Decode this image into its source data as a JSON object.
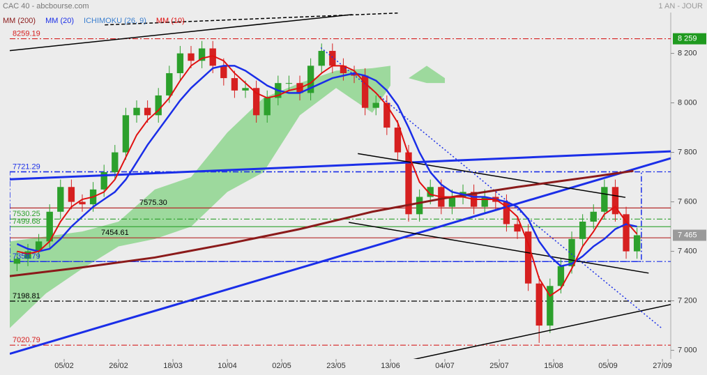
{
  "chart_data": {
    "type": "candlestick",
    "title": "CAC 40 - abcbourse.com",
    "period": "1 AN - JOUR",
    "xlim": [
      0,
      182.3
    ],
    "ylim": [
      6965,
      8365
    ],
    "xticks": [
      {
        "value": 15,
        "label": "05/02"
      },
      {
        "value": 30,
        "label": "26/02"
      },
      {
        "value": 45,
        "label": "18/03"
      },
      {
        "value": 60,
        "label": "10/04"
      },
      {
        "value": 75,
        "label": "02/05"
      },
      {
        "value": 90,
        "label": "23/05"
      },
      {
        "value": 105,
        "label": "13/06"
      },
      {
        "value": 120,
        "label": "04/07"
      },
      {
        "value": 135,
        "label": "25/07"
      },
      {
        "value": 150,
        "label": "15/08"
      },
      {
        "value": 165,
        "label": "05/09"
      },
      {
        "value": 180,
        "label": "27/09"
      }
    ],
    "yticks": [
      {
        "value": 7000,
        "label": "7 000"
      },
      {
        "value": 7200,
        "label": "7 200"
      },
      {
        "value": 7400,
        "label": "7 400"
      },
      {
        "value": 7600,
        "label": "7 600"
      },
      {
        "value": 7800,
        "label": "7 800"
      },
      {
        "value": 8000,
        "label": "8 000"
      },
      {
        "value": 8200,
        "label": "8 200"
      }
    ],
    "up_color": "#2ca02c",
    "down_color": "#d62020",
    "x": [
      2,
      5,
      8,
      11,
      14,
      17,
      20,
      23,
      26,
      29,
      32,
      35,
      38,
      41,
      44,
      47,
      50,
      53,
      56,
      59,
      62,
      65,
      68,
      71,
      74,
      77,
      80,
      83,
      86,
      89,
      92,
      95,
      98,
      101,
      104,
      107,
      110,
      113,
      116,
      119,
      122,
      125,
      128,
      131,
      134,
      137,
      140,
      143,
      146,
      149,
      152,
      155,
      158,
      161,
      164,
      167,
      170,
      173
    ],
    "open": [
      7350,
      7370,
      7400,
      7440,
      7560,
      7660,
      7600,
      7590,
      7650,
      7720,
      7800,
      7950,
      7980,
      7950,
      8030,
      8120,
      8200,
      8170,
      8220,
      8150,
      8100,
      8050,
      8060,
      7950,
      8020,
      8080,
      8080,
      8040,
      8150,
      8210,
      8150,
      8120,
      8110,
      7980,
      8000,
      7900,
      7800,
      7550,
      7620,
      7660,
      7580,
      7620,
      7640,
      7580,
      7620,
      7600,
      7510,
      7480,
      7270,
      7100,
      7260,
      7340,
      7450,
      7520,
      7560,
      7660,
      7550,
      7400
    ],
    "high": [
      7400,
      7430,
      7470,
      7590,
      7690,
      7690,
      7630,
      7680,
      7750,
      7830,
      7980,
      8010,
      8010,
      8060,
      8150,
      8230,
      8230,
      8250,
      8250,
      8180,
      8130,
      8090,
      8090,
      8050,
      8110,
      8110,
      8110,
      8180,
      8240,
      8240,
      8180,
      8150,
      8140,
      8030,
      8030,
      7930,
      7830,
      7650,
      7690,
      7690,
      7650,
      7670,
      7670,
      7650,
      7650,
      7630,
      7540,
      7510,
      7300,
      7290,
      7370,
      7480,
      7550,
      7590,
      7690,
      7690,
      7580,
      7495
    ],
    "low": [
      7320,
      7340,
      7370,
      7410,
      7530,
      7570,
      7560,
      7560,
      7620,
      7690,
      7770,
      7920,
      7920,
      7920,
      8000,
      8090,
      8140,
      8140,
      8120,
      8070,
      8020,
      8020,
      7920,
      7920,
      7990,
      8050,
      8010,
      8010,
      8120,
      8120,
      8090,
      8080,
      7950,
      7950,
      7870,
      7770,
      7520,
      7520,
      7590,
      7550,
      7550,
      7590,
      7550,
      7550,
      7570,
      7480,
      7450,
      7240,
      7030,
      7070,
      7230,
      7310,
      7420,
      7490,
      7530,
      7520,
      7370,
      7370
    ],
    "close": [
      7370,
      7400,
      7440,
      7560,
      7660,
      7600,
      7590,
      7650,
      7720,
      7800,
      7950,
      7980,
      7950,
      8030,
      8120,
      8200,
      8170,
      8220,
      8150,
      8100,
      8050,
      8060,
      7950,
      8020,
      8080,
      8080,
      8040,
      8150,
      8210,
      8150,
      8120,
      8110,
      7980,
      8000,
      7900,
      7800,
      7550,
      7620,
      7660,
      7580,
      7620,
      7640,
      7580,
      7620,
      7600,
      7510,
      7480,
      7270,
      7100,
      7260,
      7340,
      7450,
      7520,
      7560,
      7660,
      7550,
      7400,
      7465
    ],
    "ichimoku": {
      "name": "ICHIMOKU (26, 9)",
      "color": "#3a7fd0",
      "fill": "#8fd68f",
      "x": [
        0,
        10,
        20,
        30,
        40,
        50,
        60,
        70,
        80,
        90,
        100,
        105,
        108,
        110,
        115,
        120
      ],
      "upper": [
        7440,
        7460,
        7480,
        7520,
        7650,
        7700,
        7880,
        8020,
        8080,
        8130,
        8140,
        8150,
        null,
        8100,
        8150,
        8100
      ],
      "lower": [
        7090,
        7230,
        7330,
        7420,
        7450,
        7500,
        7640,
        7720,
        7950,
        8060,
        7960,
        8070,
        null,
        8100,
        8080,
        8080
      ]
    },
    "series": [
      {
        "name": "MM (200)",
        "color": "#8b1a1a",
        "width": 3,
        "x": [
          0,
          20,
          40,
          60,
          80,
          100,
          120,
          140,
          160,
          172
        ],
        "values": [
          7300,
          7335,
          7375,
          7430,
          7490,
          7560,
          7615,
          7660,
          7700,
          7725
        ]
      },
      {
        "name": "MM (20)",
        "color": "#1a2ee8",
        "width": 2.5,
        "x": [
          2,
          5,
          8,
          11,
          14,
          17,
          20,
          23,
          26,
          29,
          32,
          35,
          38,
          41,
          44,
          47,
          50,
          53,
          56,
          59,
          62,
          65,
          68,
          71,
          74,
          77,
          80,
          83,
          86,
          89,
          92,
          95,
          98,
          101,
          104,
          107,
          110,
          113,
          116,
          119,
          122,
          125,
          128,
          131,
          134,
          137,
          140,
          143,
          146,
          149,
          152,
          155,
          158,
          161,
          164,
          167,
          170,
          173
        ],
        "values": [
          7430,
          7410,
          7400,
          7410,
          7450,
          7500,
          7540,
          7580,
          7610,
          7640,
          7690,
          7760,
          7830,
          7890,
          7950,
          8010,
          8060,
          8100,
          8140,
          8150,
          8150,
          8130,
          8100,
          8070,
          8050,
          8040,
          8040,
          8060,
          8080,
          8100,
          8110,
          8120,
          8110,
          8090,
          8050,
          7990,
          7900,
          7800,
          7720,
          7670,
          7640,
          7630,
          7620,
          7620,
          7610,
          7600,
          7580,
          7530,
          7440,
          7380,
          7340,
          7350,
          7380,
          7420,
          7450,
          7490,
          7510,
          7500
        ]
      },
      {
        "name": "MM (10)",
        "color": "#e01010",
        "width": 2,
        "x": [
          2,
          5,
          8,
          11,
          14,
          17,
          20,
          23,
          26,
          29,
          32,
          35,
          38,
          41,
          44,
          47,
          50,
          53,
          56,
          59,
          62,
          65,
          68,
          71,
          74,
          77,
          80,
          83,
          86,
          89,
          92,
          95,
          98,
          101,
          104,
          107,
          110,
          113,
          116,
          119,
          122,
          125,
          128,
          131,
          134,
          137,
          140,
          143,
          146,
          149,
          152,
          155,
          158,
          161,
          164,
          167,
          170,
          173
        ],
        "values": [
          7400,
          7390,
          7400,
          7440,
          7520,
          7580,
          7610,
          7620,
          7640,
          7690,
          7780,
          7870,
          7930,
          7970,
          8020,
          8090,
          8150,
          8180,
          8190,
          8170,
          8120,
          8080,
          8040,
          8020,
          8030,
          8050,
          8060,
          8080,
          8120,
          8150,
          8150,
          8130,
          8080,
          8040,
          7990,
          7920,
          7790,
          7680,
          7630,
          7620,
          7620,
          7620,
          7610,
          7610,
          7610,
          7580,
          7540,
          7430,
          7290,
          7220,
          7250,
          7330,
          7420,
          7480,
          7550,
          7580,
          7520,
          7470
        ]
      }
    ],
    "levels": [
      {
        "value": 8259.19,
        "color": "#d62020",
        "style": "dashdot"
      },
      {
        "value": 7721.29,
        "color": "#1a2ee8",
        "style": "dashdot"
      },
      {
        "value": 7575.3,
        "label": "7575.30",
        "color": "#b52a2a",
        "style": "solid"
      },
      {
        "value": 7530.25,
        "color": "#2ca02c",
        "style": "dashdot"
      },
      {
        "value": 7499.68,
        "color": "#2ca02c",
        "style": "solid"
      },
      {
        "value": 7454.61,
        "color": "#b52a2a",
        "style": "solid"
      },
      {
        "value": 7358.79,
        "color": "#1a2ee8",
        "style": "dashdot"
      },
      {
        "value": 7198.81,
        "color": "#000000",
        "style": "dashdot"
      },
      {
        "value": 7020.79,
        "color": "#d62020",
        "style": "dashdot"
      }
    ],
    "box": {
      "color": "#1a2ee8",
      "x": [
        0,
        174.2
      ],
      "y": [
        7358.79,
        7721.29
      ]
    },
    "trend_lines": [
      {
        "color": "#000000",
        "style": "solid",
        "x": [
          0,
          94.4
        ],
        "y": [
          8211,
          8357
        ]
      },
      {
        "color": "#000000",
        "style": "dashed",
        "x": [
          26.2,
          107
        ],
        "y": [
          8315,
          8363
        ]
      },
      {
        "color": "#1a2ee8",
        "style": "thick",
        "x": [
          0,
          182.3
        ],
        "y": [
          7691,
          7804
        ]
      },
      {
        "color": "#1a2ee8",
        "style": "thick",
        "x": [
          0,
          182.3
        ],
        "y": [
          6986,
          7776
        ]
      },
      {
        "color": "#000000",
        "style": "solid",
        "x": [
          96,
          169.8
        ],
        "y": [
          7795,
          7618
        ]
      },
      {
        "color": "#000000",
        "style": "solid",
        "x": [
          93.5,
          176.2
        ],
        "y": [
          7517,
          7312
        ]
      },
      {
        "color": "#000000",
        "style": "solid",
        "x": [
          111.3,
          182.3
        ],
        "y": [
          6963,
          7185
        ]
      },
      {
        "color": "#1a2ee8",
        "style": "dotted",
        "x": [
          85.8,
          180
        ],
        "y": [
          8223,
          7087
        ]
      }
    ],
    "price_tags": [
      {
        "value": 8259,
        "label": "8 259",
        "color": "#1f9a1f",
        "text_color": "#ffffff"
      },
      {
        "value": 7465,
        "label": "7 465",
        "color": "#9a9a9a",
        "text_color": "#ffffff"
      }
    ]
  }
}
